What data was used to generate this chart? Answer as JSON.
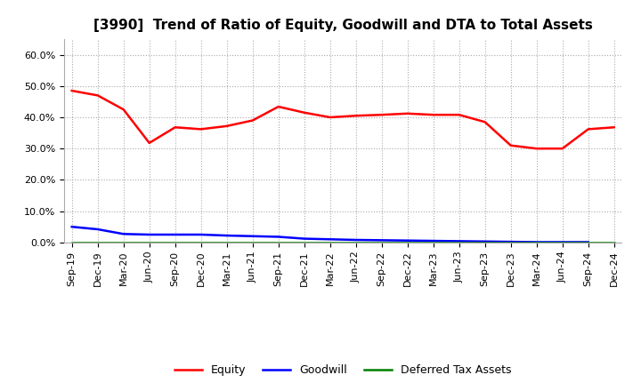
{
  "title": "[3990]  Trend of Ratio of Equity, Goodwill and DTA to Total Assets",
  "x_labels": [
    "Sep-19",
    "Dec-19",
    "Mar-20",
    "Jun-20",
    "Sep-20",
    "Dec-20",
    "Mar-21",
    "Jun-21",
    "Sep-21",
    "Dec-21",
    "Mar-22",
    "Jun-22",
    "Sep-22",
    "Dec-22",
    "Mar-23",
    "Jun-23",
    "Sep-23",
    "Dec-23",
    "Mar-24",
    "Jun-24",
    "Sep-24",
    "Dec-24"
  ],
  "equity": [
    0.485,
    0.47,
    0.425,
    0.318,
    0.368,
    0.362,
    0.372,
    0.39,
    0.434,
    0.415,
    0.4,
    0.405,
    0.408,
    0.412,
    0.408,
    0.408,
    0.385,
    0.31,
    0.3,
    0.3,
    0.362,
    0.368
  ],
  "goodwill": [
    0.05,
    0.042,
    0.027,
    0.025,
    0.025,
    0.025,
    0.022,
    0.02,
    0.018,
    0.012,
    0.01,
    0.008,
    0.007,
    0.006,
    0.005,
    0.004,
    0.003,
    0.002,
    0.001,
    0.001,
    0.001,
    null
  ],
  "dta": [
    0.0,
    0.0,
    0.0,
    0.0,
    0.0,
    0.0,
    0.0,
    0.0,
    0.0,
    0.0,
    0.0,
    0.0,
    0.0,
    0.0,
    0.0,
    0.0,
    0.0,
    0.0,
    0.0,
    0.0,
    0.0,
    0.0
  ],
  "equity_color": "#FF0000",
  "goodwill_color": "#0000FF",
  "dta_color": "#008000",
  "ylim": [
    0.0,
    0.65
  ],
  "yticks": [
    0.0,
    0.1,
    0.2,
    0.3,
    0.4,
    0.5,
    0.6
  ],
  "background_color": "#FFFFFF",
  "grid_color": "#AAAAAA",
  "line_width": 1.8,
  "title_fontsize": 11,
  "tick_fontsize": 8,
  "legend_fontsize": 9
}
